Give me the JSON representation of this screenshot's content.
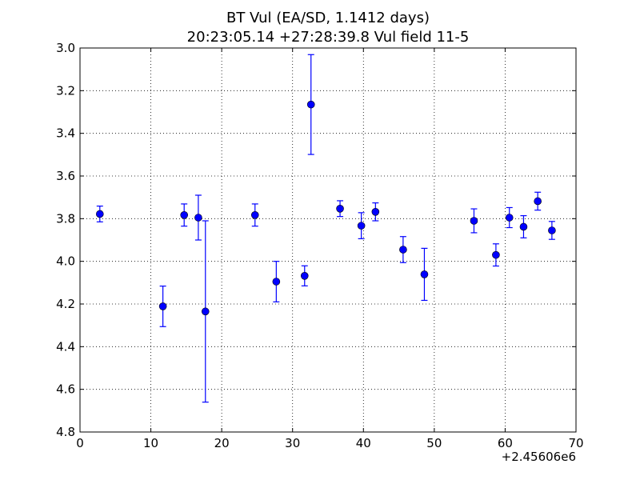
{
  "chart_data": {
    "type": "scatter",
    "title": [
      "BT Vul (EA/SD, 1.1412 days)",
      "20:23:05.14 +27:28:39.8 Vul field 11-5"
    ],
    "x_offset_label": "+2.45606e6",
    "xlabel": "",
    "ylabel": "",
    "xlim": [
      0,
      70
    ],
    "ylim": [
      4.8,
      3.0
    ],
    "y_inverted": true,
    "grid": true,
    "grid_style": "dotted",
    "marker_color": "#0000ff",
    "xticks": [
      0,
      10,
      20,
      30,
      40,
      50,
      60,
      70
    ],
    "yticks": [
      3.0,
      3.2,
      3.4,
      3.6,
      3.8,
      4.0,
      4.2,
      4.4,
      4.6,
      4.8
    ],
    "xtick_labels": [
      "0",
      "10",
      "20",
      "30",
      "40",
      "50",
      "60",
      "70"
    ],
    "ytick_labels": [
      "3.0",
      "3.2",
      "3.4",
      "3.6",
      "3.8",
      "4.0",
      "4.2",
      "4.4",
      "4.6",
      "4.8"
    ],
    "points": [
      {
        "x": 2.8,
        "y": 3.778,
        "err": 0.037
      },
      {
        "x": 11.7,
        "y": 4.211,
        "err": 0.095
      },
      {
        "x": 14.7,
        "y": 3.783,
        "err": 0.052
      },
      {
        "x": 16.7,
        "y": 3.795,
        "err": 0.105
      },
      {
        "x": 17.7,
        "y": 4.235,
        "err": 0.425
      },
      {
        "x": 24.7,
        "y": 3.783,
        "err": 0.052
      },
      {
        "x": 27.7,
        "y": 4.095,
        "err": 0.095
      },
      {
        "x": 31.7,
        "y": 4.068,
        "err": 0.047
      },
      {
        "x": 32.6,
        "y": 3.265,
        "err": 0.234
      },
      {
        "x": 36.7,
        "y": 3.753,
        "err": 0.037
      },
      {
        "x": 39.7,
        "y": 3.833,
        "err": 0.061
      },
      {
        "x": 41.7,
        "y": 3.768,
        "err": 0.042
      },
      {
        "x": 45.6,
        "y": 3.945,
        "err": 0.061
      },
      {
        "x": 48.6,
        "y": 4.061,
        "err": 0.122
      },
      {
        "x": 55.6,
        "y": 3.81,
        "err": 0.056
      },
      {
        "x": 58.7,
        "y": 3.97,
        "err": 0.052
      },
      {
        "x": 60.6,
        "y": 3.795,
        "err": 0.047
      },
      {
        "x": 62.6,
        "y": 3.838,
        "err": 0.052
      },
      {
        "x": 64.6,
        "y": 3.718,
        "err": 0.042
      },
      {
        "x": 66.6,
        "y": 3.855,
        "err": 0.042
      }
    ]
  }
}
